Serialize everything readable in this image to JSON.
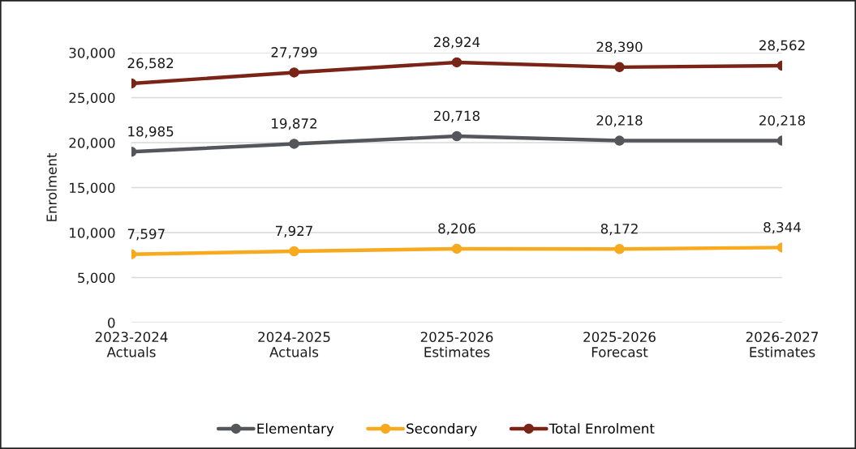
{
  "chart_data": {
    "type": "line",
    "categories": [
      "2023-2024\nActuals",
      "2024-2025\nActuals",
      "2025-2026\nEstimates",
      "2025-2026\nForecast",
      "2026-2027\nEstimates"
    ],
    "ylabel": "Enrolment",
    "ylim": [
      0,
      30000
    ],
    "yticks": [
      0,
      {
        "value": 5000,
        "label": "5,000"
      },
      {
        "value": 10000,
        "label": "10,000"
      },
      {
        "value": 15000,
        "label": "15,000"
      },
      {
        "value": 20000,
        "label": "20,000"
      },
      {
        "value": 25000,
        "label": "25,000"
      },
      {
        "value": 30000,
        "label": "30,000"
      }
    ],
    "grid": "y",
    "legend": "bottom",
    "marker": "circle",
    "line_style": "solid",
    "series": [
      {
        "name": "Elementary",
        "color": "#55565c",
        "values": [
          18985,
          19872,
          20718,
          20218,
          20218
        ],
        "value_labels": [
          "18,985",
          "19,872",
          "20,718",
          "20,218",
          "20,218"
        ]
      },
      {
        "name": "Secondary",
        "color": "#f7aa1e",
        "values": [
          7597,
          7927,
          8206,
          8172,
          8344
        ],
        "value_labels": [
          "7,597",
          "7,927",
          "8,206",
          "8,172",
          "8,344"
        ]
      },
      {
        "name": "Total Enrolment",
        "color": "#7a2418",
        "values": [
          26582,
          27799,
          28924,
          28390,
          28562
        ],
        "value_labels": [
          "26,582",
          "27,799",
          "28,924",
          "28,390",
          "28,562"
        ]
      }
    ]
  }
}
